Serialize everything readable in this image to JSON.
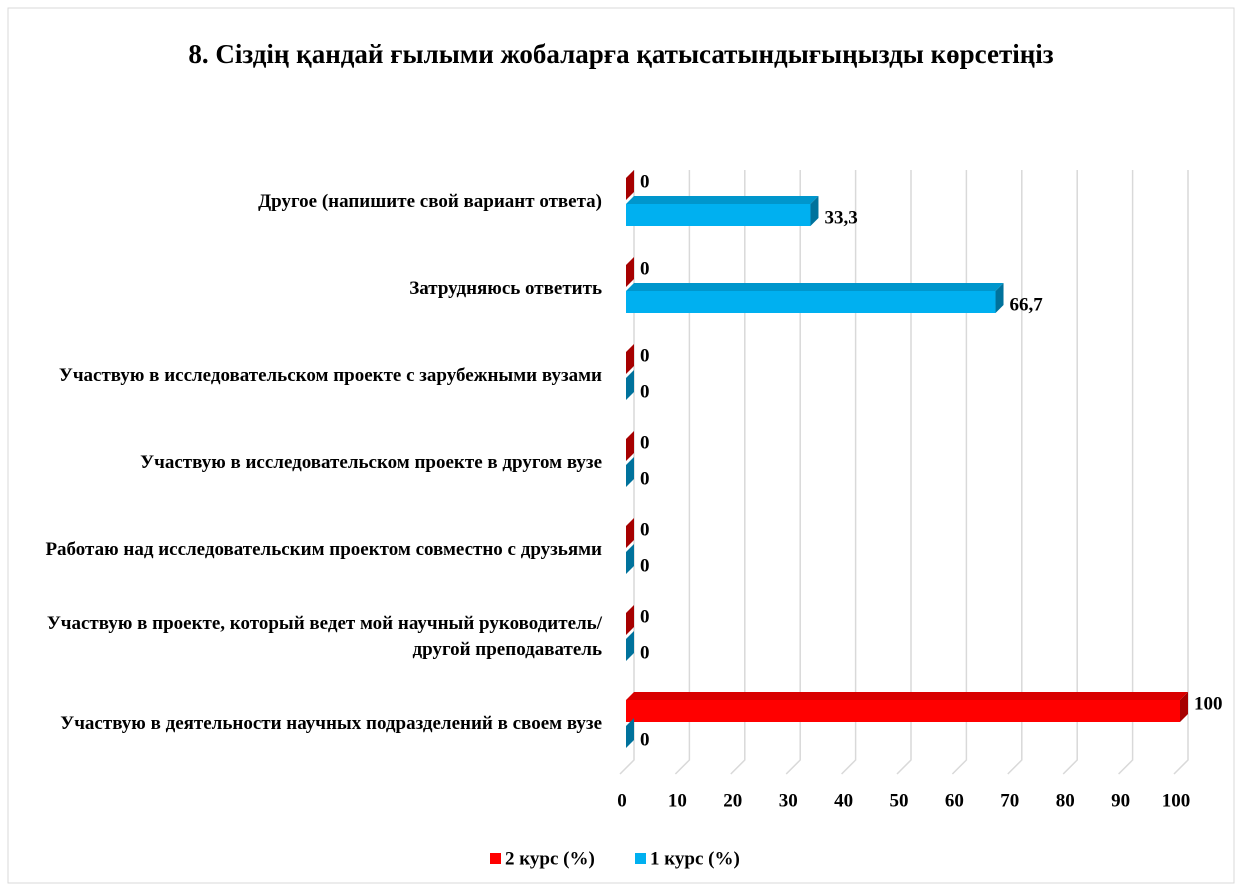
{
  "chart_data": {
    "type": "bar3d_horizontal",
    "title": "8. Сіздің қандай ғылыми жобаларға қатысатындығыңызды көрсетіңіз",
    "categories": [
      "Другое (напишите свой вариант ответа)",
      "Затрудняюсь ответить",
      "Участвую в исследовательском проекте с зарубежными вузами",
      "Участвую в исследовательском проекте в другом вузе",
      "Работаю над исследовательским проектом совместно с друзьями",
      "Участвую в проекте, который ведет мой научный руководитель/другой  преподаватель",
      "Участвую в деятельности научных подразделений в своем вузе"
    ],
    "series": [
      {
        "name": "2 курс (%)",
        "color": "#ff0000",
        "values": [
          0,
          0,
          0,
          0,
          0,
          0,
          100
        ]
      },
      {
        "name": "1 курс (%)",
        "color": "#00b0f0",
        "values": [
          33.3,
          66.7,
          0,
          0,
          0,
          0,
          0
        ],
        "value_labels": [
          "33,3",
          "66,7",
          "0",
          "0",
          "0",
          "0",
          "0"
        ]
      }
    ],
    "xlim": [
      0,
      100
    ],
    "xticks": [
      0,
      10,
      20,
      30,
      40,
      50,
      60,
      70,
      80,
      90,
      100
    ],
    "grid": true,
    "legend": "bottom"
  }
}
